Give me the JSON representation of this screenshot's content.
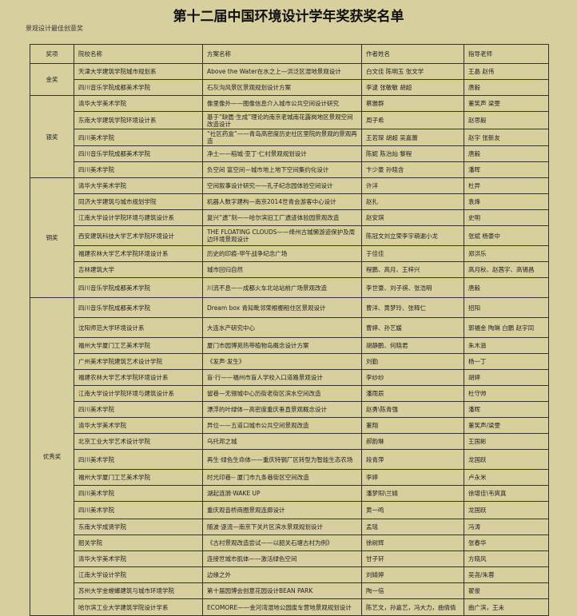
{
  "title": "第十二届中国环境设计学年奖获奖名单",
  "subtitle": "景观设计最佳创意奖",
  "columns": [
    "奖项",
    "院校名称",
    "方案名称",
    "作者姓名",
    "指导老师"
  ],
  "groups": [
    {
      "award": "金奖",
      "rows": [
        [
          "天津大学建筑学院城市规划系",
          "Above the Water在水之上—洪泛区湿地景观设计",
          "白文佳 陈明玉 张文学",
          "王晶 赵伟"
        ],
        [
          "四川音乐学院成都美术学院",
          "石灰沟风景区景观规划设计方案",
          "李逮 张敏敏 胡超",
          "唐毅"
        ]
      ]
    },
    {
      "award": "银奖",
      "rows": [
        [
          "清华大学美术学院",
          "像里像外——图像信息介入城市公共空间设计研究",
          "蔡雅群",
          "董笑声 梁雯"
        ],
        [
          "东南大学建筑学院环境设计系",
          "基于“缺匮·生成”理论的南京老城南花露岗地区景观空间改造设计",
          "周子希",
          "赵思毅"
        ],
        [
          "四川美术学院",
          "“社区药盒”——青岛高密度历史社区里院的景观的景观再造",
          "王若琛 胡超 吴嘉蕾",
          "赵宇 张新友"
        ],
        [
          "四川音乐学院成都美术学院",
          "净土——稻城·亚丁·仁村景观规划设计",
          "陈妮 陈治灿 黎程",
          "唐毅"
        ],
        [
          "四川美术学院",
          "负空间 富空间—城市地上地下空间集约化设计",
          "卞少豪 孙晓含",
          "潘晖"
        ]
      ]
    },
    {
      "award": "铜奖",
      "rows": [
        [
          "清华大学美术学院",
          "空间叙事设计研究——孔子纪念园体验空间设计",
          "许洋",
          "杜异"
        ],
        [
          "同济大学建筑与城市规划学院",
          "机器人数字建构—南京2014世青会游客中心设计",
          "赵扎",
          "袁烽"
        ],
        [
          "江南大学设计学院环境与建筑设计系",
          "复兴“遗”刻——哈尔滨旧工厂遗迹体验园景观改造",
          "赵安琪",
          "史明"
        ],
        [
          "西安建筑科技大学艺术学院环境设计",
          "THE FLOATING CLOUDS——绛州古城懒游迹保护及周边环境景观设计",
          "陈冠文刘立荣李宇萌谢小龙",
          "张斌 杨豪中"
        ],
        [
          "福建农林大学艺术学院环境设计系",
          "历史的印痕-甲午战争纪念广场",
          "于佳佳",
          "郑洪乐"
        ],
        [
          "吉林建筑大学",
          "城市回归自然",
          "程鹏、高月、王梓兴",
          "高月秋、赵茜宇、高锡昌"
        ],
        [
          "四川音乐学院成都美术学院",
          "川流不息——成都火车北站站前广场景观改造",
          "李世豪、刘子祺、张浩明",
          "唐毅"
        ]
      ]
    },
    {
      "award": "优秀奖",
      "rows": [
        [
          "四川音乐学院成都美术学院",
          "Dream box 青知毗邻荣根棚租住区景观设计",
          "曹洋、黄梦玲、张释仁",
          "招阳"
        ],
        [
          "沈阳师范大学环境设计系",
          "大连水产研究中心",
          "曹婷、孙艺媛",
          "郭福金 陶琳 白鹏 赵宇同"
        ],
        [
          "福州大学厦门工艺美术学院",
          "厦门市园博苑热带植物岛概念设计方案",
          "胡静鹏、何晓君",
          "朱木滋"
        ],
        [
          "广州美术学院建筑艺术设计学院",
          "《发声·发生》",
          "刘勤",
          "杨一丁"
        ],
        [
          "福建农林大学艺术学院环境设计系",
          "盲·行——福州市盲人学校入口道路景观设计",
          "李纱纱",
          "胡婷"
        ],
        [
          "江南大学设计学院环境与建筑设计系",
          "留巷—无锡城中心历街老街区滨水空间改造",
          "潘雨辰",
          "杜守帅"
        ],
        [
          "四川美术学院",
          "漂浮的叶绿体—高密度重庆垂直景观概念设计",
          "赵勇\\陈青强",
          "潘晖"
        ],
        [
          "清华大学美术学院",
          "异位——五道口城市公共空间景观改造",
          "董翔",
          "董笑声/梁雯"
        ],
        [
          "北京工业大学艺术设计学院",
          "乌托邦之城",
          "郝韵琳",
          "王国彬"
        ],
        [
          "四川美术学院",
          "再生·绿色生命体——重庆特钢厂区转型为智能生态农场",
          "段青萍",
          "龙国跃"
        ],
        [
          "福州大学厦门工艺美术学院",
          "时光印巷-- 厦门市九条巷街区空间改造",
          "李婷",
          "卢永米"
        ],
        [
          "四川美术学院",
          "湖起涟漪·WAKE UP",
          "潘梦阳\\兰婧",
          "徐堪佳\\韦爽真"
        ],
        [
          "四川美术学院",
          "重庆观音桥商圈景观连廊设计",
          "黄一鸣",
          "龙国跃"
        ],
        [
          "东南大学成贤学院",
          "随波·逐流—南京下关片区滨水景观规划设计",
          "孟瑶",
          "冯涛"
        ],
        [
          "韶关学院",
          "《古村景观改造尝试——以韶关石塘古村为例》",
          "徐树辉",
          "张春华"
        ],
        [
          "清华大学美术学院",
          "连接世城市肌体——激活绿色空间",
          "甘子轩",
          "方晓风"
        ],
        [
          "江南大学设计学院",
          "边缘之外",
          "刘婧婷",
          "吴尧/朱蓉"
        ],
        [
          "苏州大学金螳螂建筑与城市环境学院",
          "第十届园博会创意花园设计BEAN PARK",
          "陶一倍",
          "翟俊"
        ],
        [
          "哈尔滨工业大学建筑学院设计学系",
          "ECOMORE——金河湾湿地公园废车营地景观规划设计",
          "陈艺文，孙嘉艺，冯大力，曲倩倩",
          "曲广滨，王未"
        ]
      ]
    }
  ]
}
